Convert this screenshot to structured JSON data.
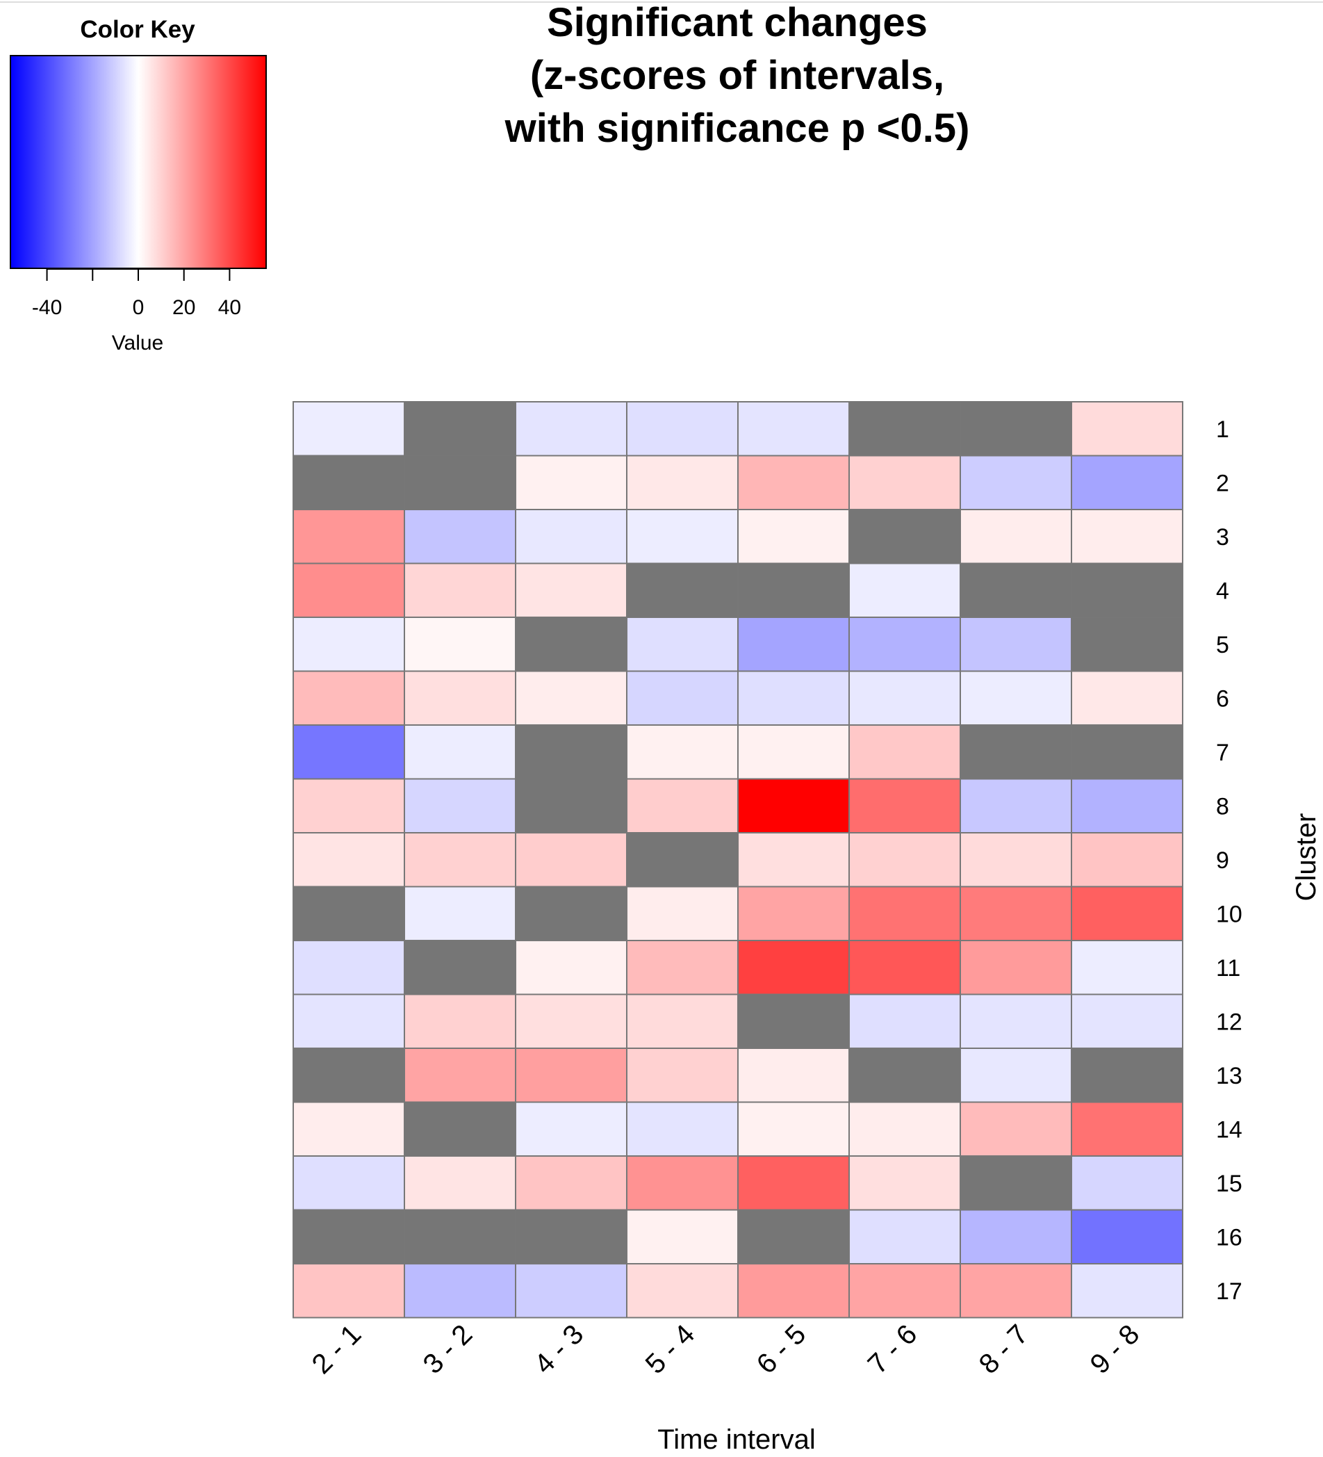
{
  "chart_data": {
    "type": "heatmap",
    "title_lines": [
      "Significant changes",
      "(z-scores of intervals,",
      "with significance p <0.5)"
    ],
    "xlabel": "Time interval",
    "ylabel": "Cluster",
    "columns": [
      "2 - 1",
      "3 - 2",
      "4 - 3",
      "5 - 4",
      "6 - 5",
      "7 - 6",
      "8 - 7",
      "9 - 8"
    ],
    "rows": [
      "1",
      "2",
      "3",
      "4",
      "5",
      "6",
      "7",
      "8",
      "9",
      "10",
      "11",
      "12",
      "13",
      "14",
      "15",
      "16",
      "17"
    ],
    "values": [
      [
        -4,
        null,
        -6,
        -7,
        -6,
        null,
        null,
        8
      ],
      [
        null,
        null,
        3,
        5,
        16,
        10,
        -11,
        -20
      ],
      [
        23,
        -13,
        -5,
        -4,
        3,
        null,
        4,
        4
      ],
      [
        25,
        9,
        6,
        null,
        null,
        -4,
        null,
        null
      ],
      [
        -4,
        2,
        null,
        -7,
        -20,
        -17,
        -13,
        null
      ],
      [
        15,
        7,
        4,
        -9,
        -7,
        -5,
        -4,
        5
      ],
      [
        -30,
        -4,
        null,
        3,
        3,
        12,
        null,
        null
      ],
      [
        10,
        -9,
        null,
        11,
        56,
        32,
        -12,
        -17
      ],
      [
        6,
        10,
        11,
        null,
        7,
        10,
        8,
        13
      ],
      [
        null,
        -4,
        null,
        4,
        20,
        31,
        29,
        35
      ],
      [
        -7,
        null,
        3,
        15,
        42,
        37,
        22,
        -4
      ],
      [
        -6,
        10,
        7,
        8,
        null,
        -7,
        -6,
        -6
      ],
      [
        null,
        20,
        21,
        10,
        4,
        null,
        -5,
        null
      ],
      [
        4,
        null,
        -4,
        -6,
        3,
        4,
        15,
        31
      ],
      [
        -7,
        6,
        13,
        24,
        35,
        7,
        null,
        -9
      ],
      [
        null,
        null,
        null,
        3,
        null,
        -7,
        -16,
        -31
      ],
      [
        13,
        -15,
        -11,
        8,
        22,
        20,
        20,
        -6
      ]
    ],
    "missing_value_color": "#767676",
    "color_scale": {
      "low": "#0000ff",
      "mid": "#ffffff",
      "high": "#ff0000",
      "domain": [
        -56,
        0,
        56
      ]
    },
    "color_key": {
      "title": "Color Key",
      "xlabel": "Value",
      "ticks": [
        -40,
        -20,
        0,
        20,
        40
      ],
      "tick_labels": [
        "-40",
        "",
        "0",
        "20",
        "40"
      ]
    }
  }
}
